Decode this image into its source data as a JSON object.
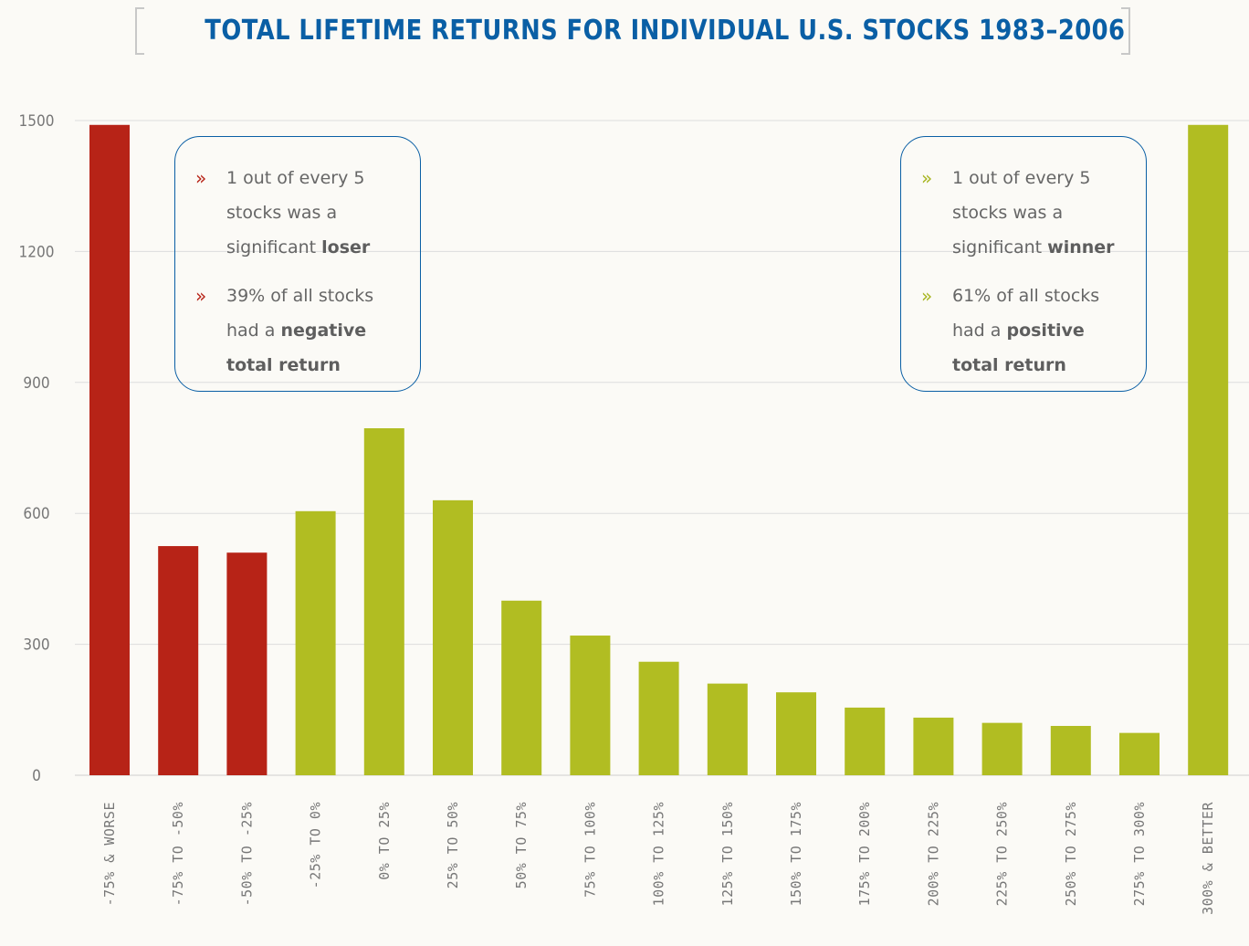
{
  "title": "TOTAL LIFETIME RETURNS FOR INDIVIDUAL U.S. STOCKS 1983–2006",
  "colors": {
    "background": "#fbfaf6",
    "title": "#0a5fa5",
    "negative": "#b72317",
    "positive": "#b1bd22",
    "grid": "#dddddd",
    "callout_border": "#0a5fa5",
    "text": "#666666"
  },
  "callouts": {
    "left": {
      "marker_color": "negative",
      "items": [
        {
          "prefix": "1 out of every 5 stocks was a significant ",
          "bold": "loser"
        },
        {
          "prefix": "39% of all stocks had a ",
          "bold": "negative total return"
        }
      ]
    },
    "right": {
      "marker_color": "positive",
      "items": [
        {
          "prefix": "1 out of every 5 stocks was a significant ",
          "bold": "winner"
        },
        {
          "prefix": "61% of all stocks had a ",
          "bold": "positive total return"
        }
      ]
    }
  },
  "chart_data": {
    "type": "bar",
    "title": "TOTAL LIFETIME RETURNS FOR INDIVIDUAL U.S. STOCKS 1983–2006",
    "xlabel": "",
    "ylabel": "",
    "ylim": [
      0,
      1500
    ],
    "yticks": [
      0,
      300,
      600,
      900,
      1200,
      1500
    ],
    "grid": true,
    "categories": [
      "-75% & WORSE",
      "-75% TO -50%",
      "-50% TO -25%",
      "-25% TO 0%",
      "0% TO 25%",
      "25% TO 50%",
      "50% TO 75%",
      "75% TO 100%",
      "100% TO 125%",
      "125% TO 150%",
      "150% TO 175%",
      "175% TO 200%",
      "200% TO 225%",
      "225% TO 250%",
      "250% TO 275%",
      "275% TO 300%",
      "300% & BETTER"
    ],
    "values": [
      1490,
      525,
      510,
      605,
      795,
      630,
      400,
      320,
      260,
      210,
      190,
      155,
      132,
      120,
      113,
      97,
      1490
    ],
    "bar_colors": [
      "#b72317",
      "#b72317",
      "#b72317",
      "#b1bd22",
      "#b1bd22",
      "#b1bd22",
      "#b1bd22",
      "#b1bd22",
      "#b1bd22",
      "#b1bd22",
      "#b1bd22",
      "#b1bd22",
      "#b1bd22",
      "#b1bd22",
      "#b1bd22",
      "#b1bd22",
      "#b1bd22"
    ]
  }
}
